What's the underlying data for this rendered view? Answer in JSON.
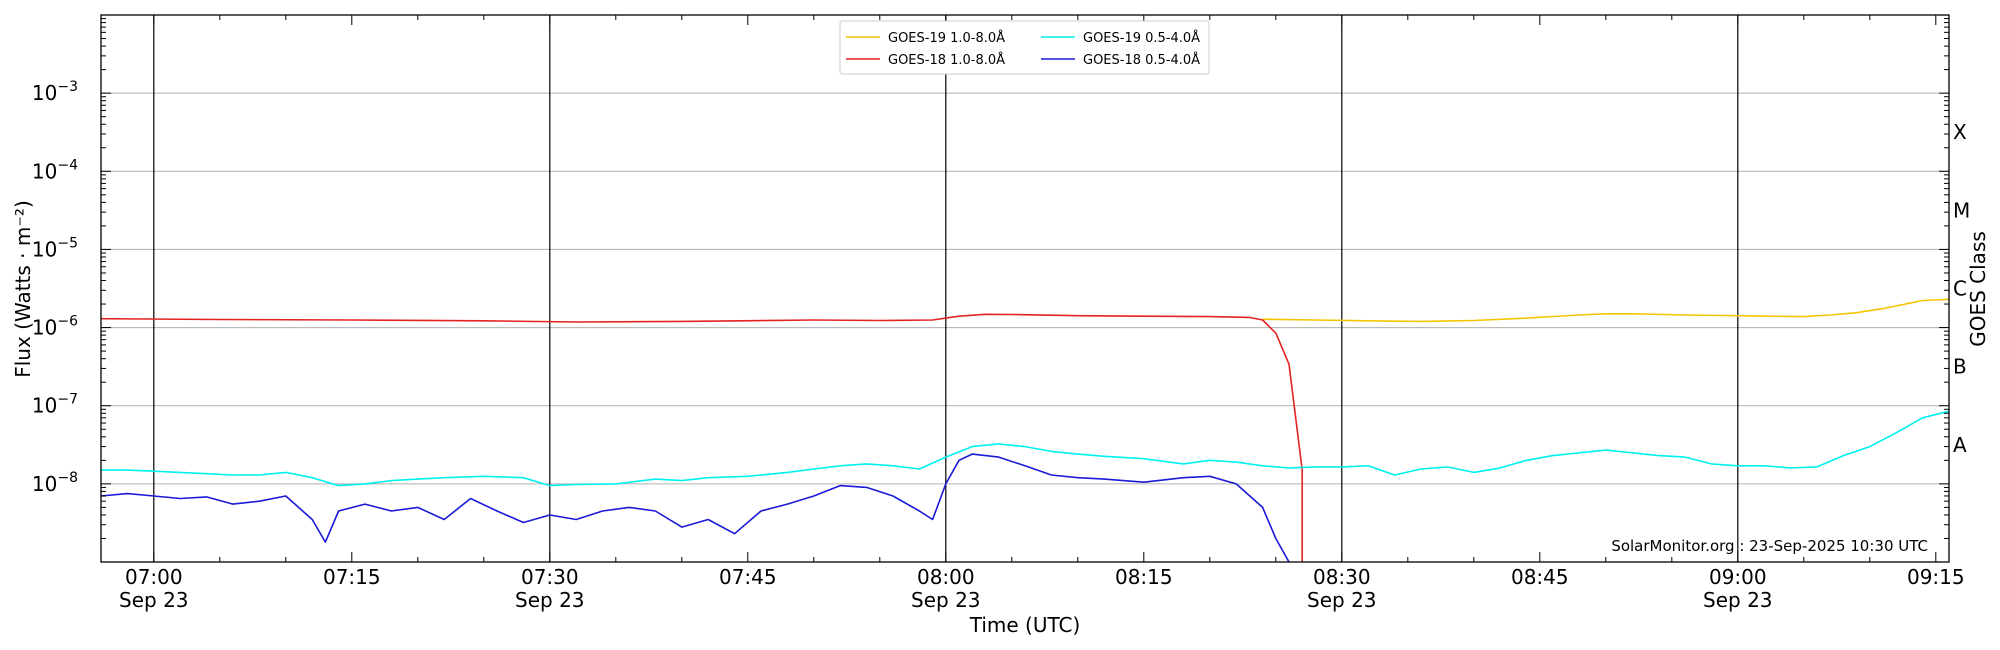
{
  "chart_data": {
    "type": "line",
    "ylabel": "Flux (Watts · m⁻²)",
    "xlabel": "Time (UTC)",
    "right_axis_label": "GOES Class",
    "y_scale": "log",
    "ylim": [
      1e-09,
      0.01
    ],
    "xlim": [
      "06:56",
      "09:16"
    ],
    "grid": "horizontal at decades, vertical lines at 30-minute marks",
    "legend_position": "top-center",
    "credit": "SolarMonitor.org : 23-Sep-2025 10:30 UTC",
    "y_ticks": [
      {
        "value": 1e-08,
        "base": "10",
        "exp": "−8"
      },
      {
        "value": 1e-07,
        "base": "10",
        "exp": "−7"
      },
      {
        "value": 1e-06,
        "base": "10",
        "exp": "−6"
      },
      {
        "value": 1e-05,
        "base": "10",
        "exp": "−5"
      },
      {
        "value": 0.0001,
        "base": "10",
        "exp": "−4"
      },
      {
        "value": 0.001,
        "base": "10",
        "exp": "−3"
      }
    ],
    "x_ticks": [
      {
        "time": "07:00",
        "label": "07:00",
        "sub": "Sep 23"
      },
      {
        "time": "07:15",
        "label": "07:15",
        "sub": ""
      },
      {
        "time": "07:30",
        "label": "07:30",
        "sub": "Sep 23"
      },
      {
        "time": "07:45",
        "label": "07:45",
        "sub": ""
      },
      {
        "time": "08:00",
        "label": "08:00",
        "sub": "Sep 23"
      },
      {
        "time": "08:15",
        "label": "08:15",
        "sub": ""
      },
      {
        "time": "08:30",
        "label": "08:30",
        "sub": "Sep 23"
      },
      {
        "time": "08:45",
        "label": "08:45",
        "sub": ""
      },
      {
        "time": "09:00",
        "label": "09:00",
        "sub": "Sep 23"
      },
      {
        "time": "09:15",
        "label": "09:15",
        "sub": ""
      }
    ],
    "vertical_lines": [
      "07:00",
      "07:30",
      "08:00",
      "08:30",
      "09:00"
    ],
    "goes_classes": [
      {
        "label": "A",
        "value": 1e-08
      },
      {
        "label": "B",
        "value": 1e-07
      },
      {
        "label": "C",
        "value": 1e-06
      },
      {
        "label": "M",
        "value": 1e-05
      },
      {
        "label": "X",
        "value": 0.0001
      }
    ],
    "series": [
      {
        "name": "GOES-19 1.0-8.0Å",
        "color": "#f5c400",
        "points": [
          [
            "08:24",
            1.28e-06
          ],
          [
            "08:28",
            1.25e-06
          ],
          [
            "08:32",
            1.22e-06
          ],
          [
            "08:36",
            1.2e-06
          ],
          [
            "08:40",
            1.23e-06
          ],
          [
            "08:44",
            1.32e-06
          ],
          [
            "08:48",
            1.45e-06
          ],
          [
            "08:50",
            1.5e-06
          ],
          [
            "08:52",
            1.5e-06
          ],
          [
            "08:56",
            1.45e-06
          ],
          [
            "09:00",
            1.42e-06
          ],
          [
            "09:02",
            1.4e-06
          ],
          [
            "09:05",
            1.38e-06
          ],
          [
            "09:07",
            1.45e-06
          ],
          [
            "09:09",
            1.55e-06
          ],
          [
            "09:11",
            1.75e-06
          ],
          [
            "09:13",
            2.05e-06
          ],
          [
            "09:14",
            2.22e-06
          ],
          [
            "09:16",
            2.3e-06
          ]
        ]
      },
      {
        "name": "GOES-18 1.0-8.0Å",
        "color": "#e32222",
        "points": [
          [
            "06:56",
            1.3e-06
          ],
          [
            "07:05",
            1.27e-06
          ],
          [
            "07:15",
            1.25e-06
          ],
          [
            "07:25",
            1.22e-06
          ],
          [
            "07:32",
            1.18e-06
          ],
          [
            "07:40",
            1.2e-06
          ],
          [
            "07:50",
            1.25e-06
          ],
          [
            "07:55",
            1.23e-06
          ],
          [
            "07:59",
            1.25e-06
          ],
          [
            "08:01",
            1.4e-06
          ],
          [
            "08:03",
            1.48e-06
          ],
          [
            "08:05",
            1.47e-06
          ],
          [
            "08:10",
            1.42e-06
          ],
          [
            "08:15",
            1.4e-06
          ],
          [
            "08:20",
            1.38e-06
          ],
          [
            "08:23",
            1.35e-06
          ],
          [
            "08:24",
            1.25e-06
          ],
          [
            "08:25",
            8.5e-07
          ],
          [
            "08:26",
            3.4e-07
          ],
          [
            "08:27",
            1.5e-08
          ],
          [
            "08:27",
            1e-09
          ]
        ]
      },
      {
        "name": "GOES-19 0.5-4.0Å",
        "color": "#00f0f0",
        "points": [
          [
            "06:56",
            1.5e-08
          ],
          [
            "06:58",
            1.5e-08
          ],
          [
            "07:00",
            1.45e-08
          ],
          [
            "07:02",
            1.4e-08
          ],
          [
            "07:04",
            1.35e-08
          ],
          [
            "07:06",
            1.3e-08
          ],
          [
            "07:08",
            1.3e-08
          ],
          [
            "07:10",
            1.4e-08
          ],
          [
            "07:12",
            1.2e-08
          ],
          [
            "07:14",
            9.5e-09
          ],
          [
            "07:16",
            1e-08
          ],
          [
            "07:18",
            1.1e-08
          ],
          [
            "07:20",
            1.15e-08
          ],
          [
            "07:22",
            1.2e-08
          ],
          [
            "07:25",
            1.25e-08
          ],
          [
            "07:28",
            1.2e-08
          ],
          [
            "07:30",
            9.5e-09
          ],
          [
            "07:32",
            9.8e-09
          ],
          [
            "07:35",
            1e-08
          ],
          [
            "07:38",
            1.15e-08
          ],
          [
            "07:40",
            1.1e-08
          ],
          [
            "07:42",
            1.2e-08
          ],
          [
            "07:45",
            1.25e-08
          ],
          [
            "07:48",
            1.4e-08
          ],
          [
            "07:50",
            1.55e-08
          ],
          [
            "07:52",
            1.7e-08
          ],
          [
            "07:54",
            1.8e-08
          ],
          [
            "07:56",
            1.7e-08
          ],
          [
            "07:58",
            1.55e-08
          ],
          [
            "08:00",
            2.2e-08
          ],
          [
            "08:02",
            3e-08
          ],
          [
            "08:04",
            3.25e-08
          ],
          [
            "08:06",
            3e-08
          ],
          [
            "08:08",
            2.6e-08
          ],
          [
            "08:10",
            2.4e-08
          ],
          [
            "08:12",
            2.25e-08
          ],
          [
            "08:15",
            2.1e-08
          ],
          [
            "08:18",
            1.8e-08
          ],
          [
            "08:20",
            2e-08
          ],
          [
            "08:22",
            1.9e-08
          ],
          [
            "08:24",
            1.7e-08
          ],
          [
            "08:26",
            1.6e-08
          ],
          [
            "08:28",
            1.65e-08
          ],
          [
            "08:30",
            1.65e-08
          ],
          [
            "08:32",
            1.7e-08
          ],
          [
            "08:34",
            1.3e-08
          ],
          [
            "08:36",
            1.55e-08
          ],
          [
            "08:38",
            1.65e-08
          ],
          [
            "08:40",
            1.4e-08
          ],
          [
            "08:42",
            1.6e-08
          ],
          [
            "08:44",
            2e-08
          ],
          [
            "08:46",
            2.3e-08
          ],
          [
            "08:48",
            2.5e-08
          ],
          [
            "08:50",
            2.7e-08
          ],
          [
            "08:52",
            2.5e-08
          ],
          [
            "08:54",
            2.3e-08
          ],
          [
            "08:56",
            2.2e-08
          ],
          [
            "08:58",
            1.8e-08
          ],
          [
            "09:00",
            1.7e-08
          ],
          [
            "09:02",
            1.7e-08
          ],
          [
            "09:04",
            1.6e-08
          ],
          [
            "09:06",
            1.65e-08
          ],
          [
            "09:08",
            2.3e-08
          ],
          [
            "09:10",
            3e-08
          ],
          [
            "09:12",
            4.5e-08
          ],
          [
            "09:14",
            7e-08
          ],
          [
            "09:16",
            8.5e-08
          ]
        ]
      },
      {
        "name": "GOES-18 0.5-4.0Å",
        "color": "#1a1ad8",
        "points": [
          [
            "06:56",
            7e-09
          ],
          [
            "06:58",
            7.5e-09
          ],
          [
            "07:00",
            7e-09
          ],
          [
            "07:02",
            6.5e-09
          ],
          [
            "07:04",
            6.8e-09
          ],
          [
            "07:06",
            5.5e-09
          ],
          [
            "07:08",
            6e-09
          ],
          [
            "07:10",
            7e-09
          ],
          [
            "07:12",
            3.5e-09
          ],
          [
            "07:13",
            1.8e-09
          ],
          [
            "07:14",
            4.5e-09
          ],
          [
            "07:16",
            5.5e-09
          ],
          [
            "07:18",
            4.5e-09
          ],
          [
            "07:20",
            5e-09
          ],
          [
            "07:22",
            3.5e-09
          ],
          [
            "07:24",
            6.5e-09
          ],
          [
            "07:26",
            4.5e-09
          ],
          [
            "07:28",
            3.2e-09
          ],
          [
            "07:30",
            4e-09
          ],
          [
            "07:32",
            3.5e-09
          ],
          [
            "07:34",
            4.5e-09
          ],
          [
            "07:36",
            5e-09
          ],
          [
            "07:38",
            4.5e-09
          ],
          [
            "07:40",
            2.8e-09
          ],
          [
            "07:42",
            3.5e-09
          ],
          [
            "07:44",
            2.3e-09
          ],
          [
            "07:46",
            4.5e-09
          ],
          [
            "07:48",
            5.5e-09
          ],
          [
            "07:50",
            7e-09
          ],
          [
            "07:52",
            9.5e-09
          ],
          [
            "07:54",
            9e-09
          ],
          [
            "07:56",
            7e-09
          ],
          [
            "07:58",
            4.5e-09
          ],
          [
            "07:59",
            3.5e-09
          ],
          [
            "08:00",
            1e-08
          ],
          [
            "08:01",
            2e-08
          ],
          [
            "08:02",
            2.4e-08
          ],
          [
            "08:04",
            2.2e-08
          ],
          [
            "08:06",
            1.7e-08
          ],
          [
            "08:08",
            1.3e-08
          ],
          [
            "08:10",
            1.2e-08
          ],
          [
            "08:12",
            1.15e-08
          ],
          [
            "08:15",
            1.05e-08
          ],
          [
            "08:18",
            1.2e-08
          ],
          [
            "08:20",
            1.25e-08
          ],
          [
            "08:22",
            1e-08
          ],
          [
            "08:24",
            5e-09
          ],
          [
            "08:25",
            2e-09
          ],
          [
            "08:26",
            1e-09
          ]
        ]
      }
    ]
  }
}
